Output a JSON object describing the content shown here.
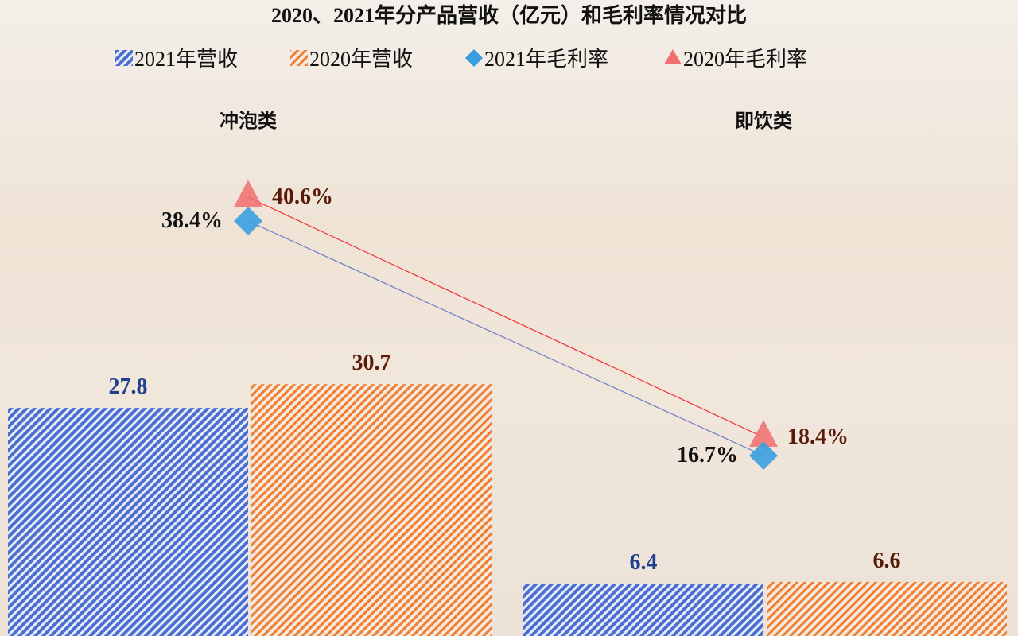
{
  "chart_data": {
    "type": "bar",
    "title": "2020、2021年分产品营收（亿元）和毛利率情况对比",
    "categories": [
      "冲泡类",
      "即饮类"
    ],
    "series": [
      {
        "name": "2021年营收",
        "kind": "bar",
        "axis": "primary",
        "values": [
          27.8,
          6.4
        ],
        "color": "#4a6fd0",
        "pattern": "diagonal-hatch"
      },
      {
        "name": "2020年营收",
        "kind": "bar",
        "axis": "primary",
        "values": [
          30.7,
          6.6
        ],
        "color": "#ee7d31",
        "pattern": "diagonal-hatch"
      },
      {
        "name": "2021年毛利率",
        "kind": "line",
        "axis": "secondary",
        "marker": "diamond",
        "values": [
          38.4,
          16.7
        ],
        "labels": [
          "38.4%",
          "16.7%"
        ],
        "color": "#3a9fe0",
        "line_color": "#6a7fc8"
      },
      {
        "name": "2020年毛利率",
        "kind": "line",
        "axis": "secondary",
        "marker": "triangle",
        "values": [
          40.6,
          18.4
        ],
        "labels": [
          "40.6%",
          "18.4%"
        ],
        "color": "#f07070",
        "line_color": "#f03030"
      }
    ],
    "bar_labels": [
      [
        "27.8",
        "6.4"
      ],
      [
        "30.7",
        "6.6"
      ]
    ],
    "bar_label_colors": [
      "#1f3f8f",
      "#5a1a0a"
    ],
    "rate_label_colors": [
      "#111111",
      "#5a1a0a"
    ],
    "legend_position": "top",
    "grid": false,
    "axes_visible": false
  }
}
